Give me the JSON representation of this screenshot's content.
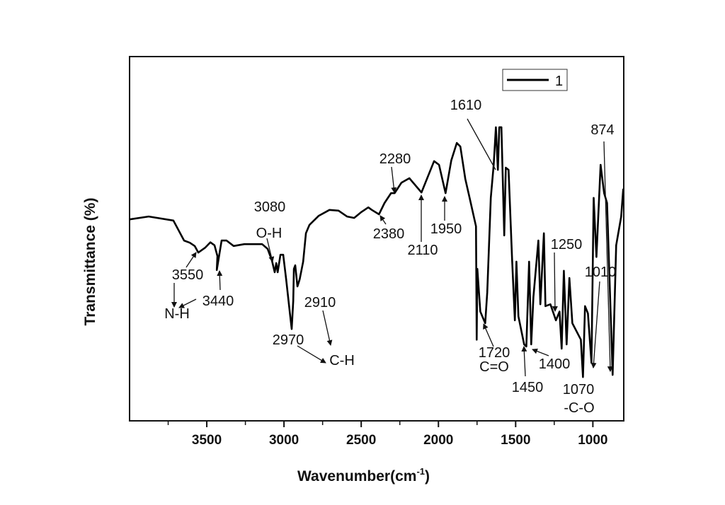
{
  "chart_data": {
    "type": "line",
    "title": "",
    "xlabel": "Wavenumber(cm",
    "xlabel_superscript": "-1",
    "xlabel_suffix": ")",
    "ylabel": "Transmittance (%)",
    "xlim": [
      4000,
      800
    ],
    "ylim": [
      0,
      100
    ],
    "x_ticks": [
      3500,
      3000,
      2500,
      2000,
      1500,
      1000
    ],
    "x_tick_labels": [
      "3500",
      "3000",
      "2500",
      "2000",
      "1500",
      "1000"
    ],
    "x_minor_ticks": [
      3750,
      3250,
      2750,
      2250,
      1750,
      1250
    ],
    "y_tick_labels": [],
    "grid": false,
    "legend": {
      "placement": "top-right",
      "entries": [
        "1"
      ]
    },
    "series": [
      {
        "name": "1",
        "color": "#000000",
        "x": [
          4000,
          3876,
          3716,
          3647,
          3610,
          3578,
          3555,
          3509,
          3477,
          3450,
          3431,
          3435,
          3404,
          3372,
          3326,
          3257,
          3142,
          3106,
          3078,
          3060,
          3050,
          3041,
          3023,
          3005,
          2986,
          2963,
          2950,
          2940,
          2936,
          2927,
          2913,
          2899,
          2876,
          2858,
          2835,
          2775,
          2706,
          2647,
          2592,
          2546,
          2500,
          2454,
          2431,
          2385,
          2349,
          2307,
          2284,
          2239,
          2188,
          2110,
          2028,
          1996,
          1954,
          1917,
          1881,
          1858,
          1826,
          1798,
          1757,
          1752,
          1748,
          1729,
          1697,
          1684,
          1661,
          1642,
          1628,
          1615,
          1606,
          1592,
          1574,
          1564,
          1546,
          1523,
          1505,
          1495,
          1482,
          1445,
          1431,
          1413,
          1399,
          1385,
          1353,
          1340,
          1317,
          1307,
          1275,
          1239,
          1216,
          1202,
          1188,
          1170,
          1152,
          1133,
          1078,
          1064,
          1051,
          1032,
          1009,
          995,
          977,
          950,
          927,
          908,
          872,
          849,
          817,
          803
        ],
        "y": [
          55.3,
          56.1,
          55,
          49.5,
          48.9,
          48,
          46.2,
          47.6,
          49,
          48.2,
          45.2,
          41.4,
          49.5,
          49.5,
          48,
          48.5,
          48.5,
          47.2,
          44,
          40.8,
          43.3,
          40.8,
          45.6,
          45.6,
          38.8,
          30,
          25.2,
          33,
          41.7,
          42.7,
          36.9,
          38.8,
          43.7,
          51.5,
          53.8,
          56.3,
          57.9,
          57.7,
          56.1,
          55.7,
          57.3,
          58.6,
          57.9,
          56.7,
          59.8,
          62.5,
          62.5,
          65.4,
          66.6,
          62.7,
          71.3,
          70.3,
          62.5,
          71.5,
          76.3,
          75.3,
          66.4,
          61.2,
          53.4,
          22.3,
          41.7,
          30,
          26.8,
          35.3,
          61.2,
          70.3,
          80.6,
          68.9,
          80.6,
          80.6,
          50.9,
          69.5,
          68.9,
          44.3,
          27.6,
          43.7,
          28.7,
          21,
          20.4,
          43.7,
          21,
          34,
          49.5,
          32,
          51.5,
          31.5,
          32,
          27.6,
          30,
          19.8,
          41.2,
          21,
          39.2,
          26.8,
          22.3,
          12,
          31.5,
          29.5,
          15.9,
          61.2,
          45,
          70.3,
          62.5,
          59.8,
          12.6,
          48.2,
          56,
          63.7
        ]
      }
    ],
    "annotations": [
      "3550",
      "N-H",
      "3440",
      "3080",
      "O-H",
      "2970",
      "C-H",
      "2910",
      "2280",
      "2380",
      "2110",
      "1950",
      "1610",
      "1720",
      "C=O",
      "1450",
      "1400",
      "1250",
      "1010",
      "874",
      "1070",
      "-C-O"
    ]
  }
}
